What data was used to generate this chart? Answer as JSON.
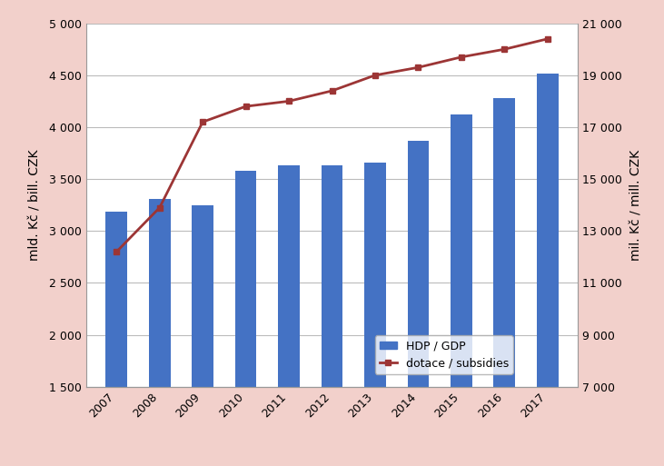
{
  "years": [
    2007,
    2008,
    2009,
    2010,
    2011,
    2012,
    2013,
    2014,
    2015,
    2016,
    2017
  ],
  "gdp": [
    3185,
    3310,
    3250,
    3580,
    3630,
    3630,
    3660,
    3870,
    4120,
    4280,
    4520
  ],
  "subsidies": [
    12200,
    13900,
    17200,
    17800,
    18000,
    18400,
    19000,
    19300,
    19700,
    20000,
    20400
  ],
  "bar_color": "#4472C4",
  "line_color": "#9C3535",
  "marker_color": "#9C3535",
  "background_color": "#F2D0CB",
  "plot_background": "#FFFFFF",
  "left_ylabel": "mld. Kč / bill. CZK",
  "right_ylabel": "mil. Kč / mill. CZK",
  "left_ylim": [
    1500,
    5000
  ],
  "right_ylim": [
    7000,
    21000
  ],
  "left_yticks": [
    1500,
    2000,
    2500,
    3000,
    3500,
    4000,
    4500,
    5000
  ],
  "right_yticks": [
    7000,
    9000,
    11000,
    13000,
    15000,
    17000,
    19000,
    21000
  ],
  "legend_gdp": "HDP / GDP",
  "legend_subsidies": "dotace / subsidies"
}
